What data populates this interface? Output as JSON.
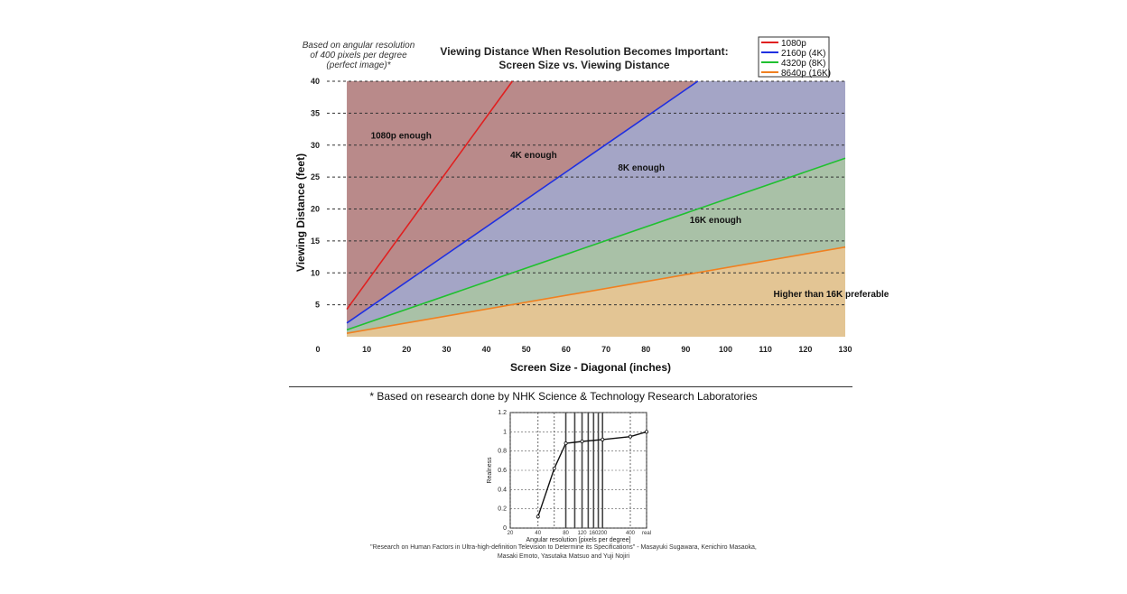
{
  "chart_data": [
    {
      "type": "area",
      "title": "Viewing Distance When Resolution Becomes Important:",
      "subtitle": "Screen Size vs. Viewing Distance",
      "note": [
        "Based on angular resolution",
        "of 400 pixels per degree",
        "(perfect image)*"
      ],
      "xlabel": "Screen Size - Diagonal (inches)",
      "ylabel": "Viewing Distance (feet)",
      "xlim": [
        0,
        130
      ],
      "ylim": [
        0,
        40
      ],
      "x_ticks": [
        0,
        10,
        20,
        30,
        40,
        50,
        60,
        70,
        80,
        90,
        100,
        110,
        120,
        130
      ],
      "y_ticks": [
        5,
        10,
        15,
        20,
        25,
        30,
        35,
        40
      ],
      "x_start": 5,
      "series": [
        {
          "name": "1080p",
          "slope_ft_per_inch": 0.86,
          "color": "#e02020",
          "fill": "#b98a8a"
        },
        {
          "name": "2160p (4K)",
          "slope_ft_per_inch": 0.43,
          "color": "#2030e0",
          "fill": "#a4a5c6"
        },
        {
          "name": "4320p (8K)",
          "slope_ft_per_inch": 0.215,
          "color": "#20c030",
          "fill": "#a9c1a7"
        },
        {
          "name": "8640p (16K)",
          "slope_ft_per_inch": 0.108,
          "color": "#f08020",
          "fill": "#e3c594"
        }
      ],
      "background_fill": "#c5c5c5",
      "regions": [
        {
          "label": "1080p enough",
          "x": 11,
          "y": 31
        },
        {
          "label": "4K enough",
          "x": 46,
          "y": 28
        },
        {
          "label": "8K enough",
          "x": 73,
          "y": 26
        },
        {
          "label": "16K enough",
          "x": 91,
          "y": 17.8
        },
        {
          "label": "Higher than 16K preferable",
          "x": 112,
          "y": 6.2
        }
      ],
      "legend": {
        "position": "top-right",
        "entries": [
          "1080p",
          "2160p (4K)",
          "4320p (8K)",
          "8640p (16K)"
        ]
      }
    },
    {
      "type": "line",
      "xlabel": "Angular resolution [pixels per degree]",
      "ylabel": "Realness",
      "ylim": [
        0,
        1.2
      ],
      "y_ticks": [
        0,
        0.2,
        0.4,
        0.6,
        0.8,
        1,
        1.2
      ],
      "x_tick_labels": [
        "20",
        "40",
        "80",
        "120",
        "160",
        "200",
        "400",
        "real"
      ],
      "x_tick_values": [
        20,
        40,
        80,
        120,
        160,
        200,
        400,
        600
      ],
      "x_grid_values": [
        20,
        40,
        60,
        80,
        100,
        120,
        140,
        160,
        180,
        200,
        400,
        600
      ],
      "x_scale": "log",
      "x": [
        40,
        60,
        80,
        120,
        200,
        400,
        600
      ],
      "values": [
        0.12,
        0.62,
        0.88,
        0.9,
        0.92,
        0.95,
        1.0
      ]
    }
  ],
  "research_note": "* Based on research done by NHK Science & Technology Research Laboratories",
  "source": {
    "line1": "\"Research on Human Factors in Ultra-high-definition Television to Determine its Specifications\" - Masayuki Sugawara, Kenichiro Masaoka,",
    "line2": "Masaki Emoto, Yasutaka Matsuo and Yuji Nojiri"
  }
}
